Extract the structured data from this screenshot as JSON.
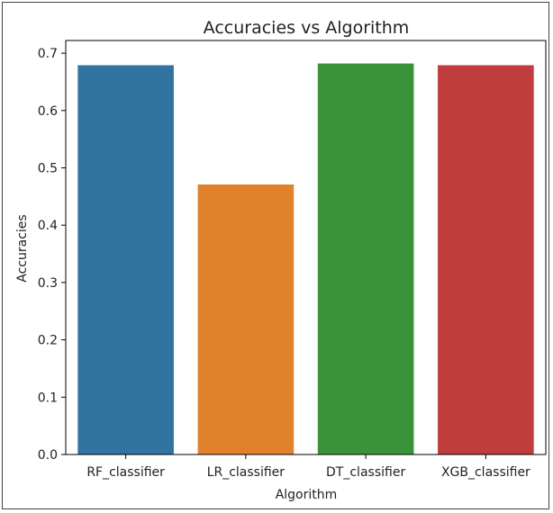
{
  "chart_data": {
    "type": "bar",
    "title": "Accuracies vs Algorithm",
    "xlabel": "Algorithm",
    "ylabel": "Accuracies",
    "categories": [
      "RF_classifier",
      "LR_classifier",
      "DT_classifier",
      "XGB_classifier"
    ],
    "values": [
      0.679,
      0.471,
      0.682,
      0.679
    ],
    "colors": [
      "#3274a1",
      "#e1812c",
      "#3a923a",
      "#c03d3e"
    ],
    "ylim": [
      0,
      0.72
    ],
    "yticks": [
      "0.0",
      "0.1",
      "0.2",
      "0.3",
      "0.4",
      "0.5",
      "0.6",
      "0.7"
    ],
    "grid": false,
    "legend": "none"
  }
}
